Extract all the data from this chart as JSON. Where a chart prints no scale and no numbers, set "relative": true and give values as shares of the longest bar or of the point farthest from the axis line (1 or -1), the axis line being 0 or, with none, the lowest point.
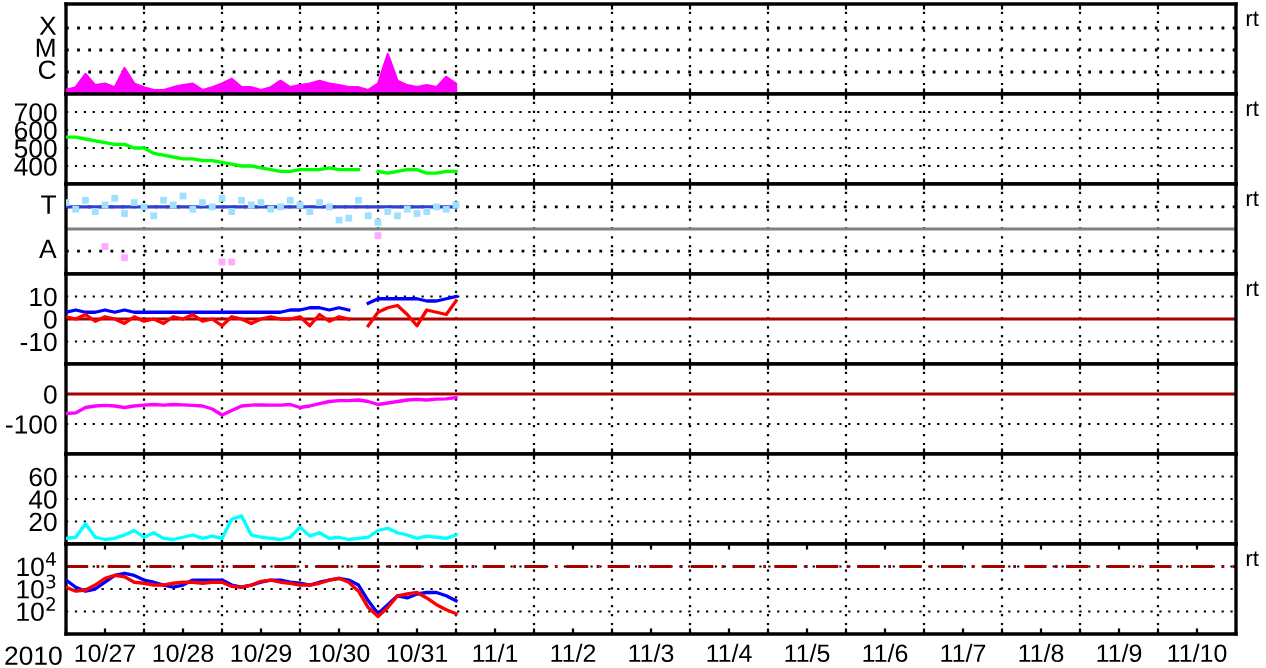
{
  "chart_data": [
    {
      "type": "area",
      "tick_labels": false,
      "relative": true,
      "grid": "x",
      "xlim": [
        "2010-10-27T00:00",
        "2010-11-11T00:00"
      ],
      "xticks": [
        {
          "value": "2010-10-27T00:00",
          "label": null
        },
        {
          "value": "2010-10-28T00:00",
          "label": null
        },
        {
          "value": "2010-10-29T00:00",
          "label": null
        },
        {
          "value": "2010-10-30T00:00",
          "label": null
        },
        {
          "value": "2010-10-31T00:00",
          "label": null
        },
        {
          "value": "2010-11-01T00:00",
          "label": null
        },
        {
          "value": "2010-11-02T00:00",
          "label": null
        },
        {
          "value": "2010-11-03T00:00",
          "label": null
        },
        {
          "value": "2010-11-04T00:00",
          "label": null
        },
        {
          "value": "2010-11-05T00:00",
          "label": null
        },
        {
          "value": "2010-11-06T00:00",
          "label": null
        },
        {
          "value": "2010-11-07T00:00",
          "label": null
        },
        {
          "value": "2010-11-08T00:00",
          "label": null
        },
        {
          "value": "2010-11-09T00:00",
          "label": null
        },
        {
          "value": "2010-11-10T00:00",
          "label": null
        },
        {
          "value": "2010-11-11T00:00",
          "label": null
        }
      ],
      "ref_lines": [
        {
          "axis": "y",
          "value": 0.55,
          "label": "C",
          "color": "#000000",
          "line_style": "dotted"
        },
        {
          "axis": "y",
          "value": 1.1,
          "label": "M",
          "color": "#000000",
          "line_style": "dotted"
        },
        {
          "axis": "y",
          "value": 1.65,
          "label": "X",
          "color": "#000000",
          "line_style": "dotted"
        }
      ],
      "annotations": [
        "rt"
      ],
      "x": [
        "2010-10-27T00:00",
        "2010-10-27T03:00",
        "2010-10-27T06:00",
        "2010-10-27T09:00",
        "2010-10-27T12:00",
        "2010-10-27T15:00",
        "2010-10-27T18:00",
        "2010-10-27T21:00",
        "2010-10-28T00:00",
        "2010-10-28T03:00",
        "2010-10-28T06:00",
        "2010-10-28T09:00",
        "2010-10-28T12:00",
        "2010-10-28T15:00",
        "2010-10-28T18:00",
        "2010-10-28T21:00",
        "2010-10-29T00:00",
        "2010-10-29T03:00",
        "2010-10-29T06:00",
        "2010-10-29T09:00",
        "2010-10-29T12:00",
        "2010-10-29T15:00",
        "2010-10-29T18:00",
        "2010-10-29T21:00",
        "2010-10-30T00:00",
        "2010-10-30T03:00",
        "2010-10-30T06:00",
        "2010-10-30T09:00",
        "2010-10-30T12:00",
        "2010-10-30T15:00",
        "2010-10-30T18:00",
        "2010-10-30T21:00",
        "2010-10-31T00:00",
        "2010-10-31T03:00",
        "2010-10-31T06:00",
        "2010-10-31T09:00",
        "2010-10-31T12:00",
        "2010-10-31T15:00",
        "2010-10-31T18:00",
        "2010-10-31T21:00",
        "2010-11-01T00:00"
      ],
      "series": [
        {
          "color": "#ff00ff",
          "values": [
            0.1,
            0.17,
            0.5,
            0.22,
            0.26,
            0.17,
            0.65,
            0.26,
            0.17,
            0.1,
            0.1,
            0.17,
            0.22,
            0.26,
            0.1,
            0.17,
            0.26,
            0.38,
            0.17,
            0.17,
            0.1,
            0.17,
            0.33,
            0.17,
            0.22,
            0.26,
            0.33,
            0.26,
            0.22,
            0.17,
            0.17,
            0.1,
            0.26,
            1,
            0.33,
            0.22,
            0.17,
            0.22,
            0.17,
            0.43,
            0.26
          ]
        }
      ]
    },
    {
      "type": "line",
      "tick_labels": "y",
      "grid": true,
      "xlim": [
        "2010-10-27T00:00",
        "2010-11-11T00:00"
      ],
      "ylim": [
        300,
        800
      ],
      "xticks": [
        {
          "value": "2010-10-27T00:00",
          "label": null
        },
        {
          "value": "2010-10-28T00:00",
          "label": null
        },
        {
          "value": "2010-10-29T00:00",
          "label": null
        },
        {
          "value": "2010-10-30T00:00",
          "label": null
        },
        {
          "value": "2010-10-31T00:00",
          "label": null
        },
        {
          "value": "2010-11-01T00:00",
          "label": null
        },
        {
          "value": "2010-11-02T00:00",
          "label": null
        },
        {
          "value": "2010-11-03T00:00",
          "label": null
        },
        {
          "value": "2010-11-04T00:00",
          "label": null
        },
        {
          "value": "2010-11-05T00:00",
          "label": null
        },
        {
          "value": "2010-11-06T00:00",
          "label": null
        },
        {
          "value": "2010-11-07T00:00",
          "label": null
        },
        {
          "value": "2010-11-08T00:00",
          "label": null
        },
        {
          "value": "2010-11-09T00:00",
          "label": null
        },
        {
          "value": "2010-11-10T00:00",
          "label": null
        },
        {
          "value": "2010-11-11T00:00",
          "label": null
        }
      ],
      "yticks": [
        400,
        500,
        600,
        700
      ],
      "annotations": [
        "rt"
      ],
      "x": [
        "2010-10-27T00:00",
        "2010-10-27T03:00",
        "2010-10-27T06:00",
        "2010-10-27T09:00",
        "2010-10-27T12:00",
        "2010-10-27T15:00",
        "2010-10-27T18:00",
        "2010-10-27T21:00",
        "2010-10-28T00:00",
        "2010-10-28T03:00",
        "2010-10-28T06:00",
        "2010-10-28T09:00",
        "2010-10-28T12:00",
        "2010-10-28T15:00",
        "2010-10-28T18:00",
        "2010-10-28T21:00",
        "2010-10-29T00:00",
        "2010-10-29T03:00",
        "2010-10-29T06:00",
        "2010-10-29T09:00",
        "2010-10-29T12:00",
        "2010-10-29T15:00",
        "2010-10-29T18:00",
        "2010-10-29T21:00",
        "2010-10-30T00:00",
        "2010-10-30T03:00",
        "2010-10-30T06:00",
        "2010-10-30T09:00",
        "2010-10-30T12:00",
        "2010-10-30T15:00",
        "2010-10-30T18:00",
        "2010-10-30T21:00",
        "2010-10-31T00:00",
        "2010-10-31T03:00",
        "2010-10-31T06:00",
        "2010-10-31T09:00",
        "2010-10-31T12:00",
        "2010-10-31T15:00",
        "2010-10-31T18:00",
        "2010-10-31T21:00",
        "2010-11-01T00:00"
      ],
      "series": [
        {
          "color": "#00ff00",
          "values": [
            560,
            560,
            550,
            540,
            530,
            520,
            520,
            500,
            500,
            470,
            460,
            450,
            440,
            440,
            430,
            430,
            420,
            410,
            400,
            400,
            390,
            380,
            370,
            370,
            380,
            380,
            380,
            390,
            380,
            380,
            380,
            null,
            370,
            360,
            370,
            380,
            380,
            360,
            360,
            370,
            370
          ]
        }
      ]
    },
    {
      "type": "line",
      "tick_labels": false,
      "relative": true,
      "grid": "x",
      "xlim": [
        "2010-10-27T00:00",
        "2010-11-11T00:00"
      ],
      "xticks": [
        {
          "value": "2010-10-27T00:00",
          "label": null
        },
        {
          "value": "2010-10-28T00:00",
          "label": null
        },
        {
          "value": "2010-10-29T00:00",
          "label": null
        },
        {
          "value": "2010-10-30T00:00",
          "label": null
        },
        {
          "value": "2010-10-31T00:00",
          "label": null
        },
        {
          "value": "2010-11-01T00:00",
          "label": null
        },
        {
          "value": "2010-11-02T00:00",
          "label": null
        },
        {
          "value": "2010-11-03T00:00",
          "label": null
        },
        {
          "value": "2010-11-04T00:00",
          "label": null
        },
        {
          "value": "2010-11-05T00:00",
          "label": null
        },
        {
          "value": "2010-11-06T00:00",
          "label": null
        },
        {
          "value": "2010-11-07T00:00",
          "label": null
        },
        {
          "value": "2010-11-08T00:00",
          "label": null
        },
        {
          "value": "2010-11-09T00:00",
          "label": null
        },
        {
          "value": "2010-11-10T00:00",
          "label": null
        },
        {
          "value": "2010-11-11T00:00",
          "label": null
        }
      ],
      "ref_lines": [
        {
          "axis": "y",
          "value": 0.67,
          "label": "T",
          "color": "#000000",
          "line_style": "dotted"
        },
        {
          "axis": "y",
          "value": -0.67,
          "label": "A",
          "color": "#000000",
          "line_style": "dotted"
        },
        {
          "axis": "y",
          "value": 0,
          "color": "#808080",
          "line_style": "solid"
        }
      ],
      "annotations": [
        "rt"
      ],
      "x": [
        "2010-10-27T00:00",
        "2010-10-27T03:00",
        "2010-10-27T06:00",
        "2010-10-27T09:00",
        "2010-10-27T12:00",
        "2010-10-27T15:00",
        "2010-10-27T18:00",
        "2010-10-27T21:00",
        "2010-10-28T00:00",
        "2010-10-28T03:00",
        "2010-10-28T06:00",
        "2010-10-28T09:00",
        "2010-10-28T12:00",
        "2010-10-28T15:00",
        "2010-10-28T18:00",
        "2010-10-28T21:00",
        "2010-10-29T00:00",
        "2010-10-29T03:00",
        "2010-10-29T06:00",
        "2010-10-29T09:00",
        "2010-10-29T12:00",
        "2010-10-29T15:00",
        "2010-10-29T18:00",
        "2010-10-29T21:00",
        "2010-10-30T00:00",
        "2010-10-30T03:00",
        "2010-10-30T06:00",
        "2010-10-30T09:00",
        "2010-10-30T12:00",
        "2010-10-30T15:00",
        "2010-10-30T18:00",
        "2010-10-30T21:00",
        "2010-10-31T00:00",
        "2010-10-31T03:00",
        "2010-10-31T06:00",
        "2010-10-31T09:00",
        "2010-10-31T12:00",
        "2010-10-31T15:00",
        "2010-10-31T18:00",
        "2010-10-31T21:00",
        "2010-11-01T00:00"
      ],
      "series": [
        {
          "type": "scatter",
          "marker": "square",
          "color": "#a0e0ff",
          "values": [
            0.8,
            0.6,
            0.87,
            0.53,
            0.73,
            0.93,
            0.47,
            0.8,
            0.67,
            0.4,
            0.87,
            0.73,
            1,
            0.6,
            0.8,
            0.67,
            0.93,
            0.53,
            0.87,
            0.73,
            0.8,
            0.6,
            0.67,
            0.87,
            0.73,
            0.53,
            0.8,
            0.67,
            0.27,
            0.33,
            0.87,
            0.4,
            0.2,
            0.53,
            0.4,
            0.6,
            0.47,
            0.53,
            0.67,
            0.6,
            0.73
          ]
        },
        {
          "type": "line",
          "color": "#3040d0",
          "values": [
            0.67,
            0.67,
            0.67,
            0.67,
            0.67,
            0.67,
            0.67,
            0.67,
            0.67,
            0.67,
            0.67,
            0.67,
            0.67,
            0.67,
            0.67,
            0.67,
            0.67,
            0.67,
            0.67,
            0.67,
            0.67,
            0.67,
            0.67,
            0.67,
            0.67,
            0.67,
            0.67,
            0.67,
            0.67,
            0.67,
            0.67,
            0.67,
            0.67,
            0.67,
            0.67,
            0.67,
            0.67,
            0.67,
            0.67,
            0.67,
            0.67
          ]
        },
        {
          "type": "scatter",
          "marker": "square",
          "color": "#ffaaff",
          "values": [
            null,
            null,
            null,
            null,
            -0.53,
            null,
            -0.87,
            null,
            null,
            null,
            null,
            null,
            null,
            null,
            null,
            null,
            -1,
            -1,
            null,
            null,
            null,
            null,
            null,
            null,
            null,
            null,
            null,
            null,
            null,
            null,
            null,
            null,
            -0.2,
            null,
            null,
            null,
            null,
            null,
            null,
            null,
            null
          ]
        }
      ]
    },
    {
      "type": "line",
      "tick_labels": "y",
      "grid": true,
      "xlim": [
        "2010-10-27T00:00",
        "2010-11-11T00:00"
      ],
      "ylim": [
        -20,
        20
      ],
      "xticks": [
        {
          "value": "2010-10-27T00:00",
          "label": null
        },
        {
          "value": "2010-10-28T00:00",
          "label": null
        },
        {
          "value": "2010-10-29T00:00",
          "label": null
        },
        {
          "value": "2010-10-30T00:00",
          "label": null
        },
        {
          "value": "2010-10-31T00:00",
          "label": null
        },
        {
          "value": "2010-11-01T00:00",
          "label": null
        },
        {
          "value": "2010-11-02T00:00",
          "label": null
        },
        {
          "value": "2010-11-03T00:00",
          "label": null
        },
        {
          "value": "2010-11-04T00:00",
          "label": null
        },
        {
          "value": "2010-11-05T00:00",
          "label": null
        },
        {
          "value": "2010-11-06T00:00",
          "label": null
        },
        {
          "value": "2010-11-07T00:00",
          "label": null
        },
        {
          "value": "2010-11-08T00:00",
          "label": null
        },
        {
          "value": "2010-11-09T00:00",
          "label": null
        },
        {
          "value": "2010-11-10T00:00",
          "label": null
        },
        {
          "value": "2010-11-11T00:00",
          "label": null
        }
      ],
      "yticks": [
        {
          "value": -10,
          "label": "-10"
        },
        0,
        10
      ],
      "ref_lines": [
        {
          "axis": "y",
          "value": 0,
          "color": "#aa0000",
          "line_style": "solid"
        }
      ],
      "annotations": [
        "rt"
      ],
      "x": [
        "2010-10-27T00:00",
        "2010-10-27T03:00",
        "2010-10-27T06:00",
        "2010-10-27T09:00",
        "2010-10-27T12:00",
        "2010-10-27T15:00",
        "2010-10-27T18:00",
        "2010-10-27T21:00",
        "2010-10-28T00:00",
        "2010-10-28T03:00",
        "2010-10-28T06:00",
        "2010-10-28T09:00",
        "2010-10-28T12:00",
        "2010-10-28T15:00",
        "2010-10-28T18:00",
        "2010-10-28T21:00",
        "2010-10-29T00:00",
        "2010-10-29T03:00",
        "2010-10-29T06:00",
        "2010-10-29T09:00",
        "2010-10-29T12:00",
        "2010-10-29T15:00",
        "2010-10-29T18:00",
        "2010-10-29T21:00",
        "2010-10-30T00:00",
        "2010-10-30T03:00",
        "2010-10-30T06:00",
        "2010-10-30T09:00",
        "2010-10-30T12:00",
        "2010-10-30T15:00",
        "2010-10-30T18:00",
        "2010-10-30T21:00",
        "2010-10-31T00:00",
        "2010-10-31T03:00",
        "2010-10-31T06:00",
        "2010-10-31T09:00",
        "2010-10-31T12:00",
        "2010-10-31T15:00",
        "2010-10-31T18:00",
        "2010-10-31T21:00",
        "2010-11-01T00:00"
      ],
      "series": [
        {
          "color": "#0000ff",
          "values": [
            3,
            4,
            3,
            3,
            4,
            3,
            4,
            3,
            3,
            3,
            3,
            3,
            3,
            3,
            3,
            3,
            3,
            3,
            3,
            3,
            3,
            3,
            3,
            4,
            4,
            5,
            5,
            4,
            5,
            4,
            null,
            7,
            9,
            9,
            9,
            9,
            9,
            8,
            8,
            9,
            10
          ]
        },
        {
          "color": "#ff0000",
          "values": [
            1,
            0,
            2,
            -1,
            1,
            0,
            -2,
            1,
            -1,
            0,
            -2,
            1,
            0,
            2,
            -1,
            0,
            -3,
            1,
            0,
            -2,
            0,
            1,
            0,
            0,
            1,
            -3,
            2,
            -1,
            1,
            0,
            null,
            -3,
            3,
            5,
            6,
            2,
            -3,
            4,
            3,
            2,
            8
          ]
        }
      ]
    },
    {
      "type": "line",
      "tick_labels": "y",
      "grid": true,
      "xlim": [
        "2010-10-27T00:00",
        "2010-11-11T00:00"
      ],
      "ylim": [
        -200,
        100
      ],
      "xticks": [
        {
          "value": "2010-10-27T00:00",
          "label": null
        },
        {
          "value": "2010-10-28T00:00",
          "label": null
        },
        {
          "value": "2010-10-29T00:00",
          "label": null
        },
        {
          "value": "2010-10-30T00:00",
          "label": null
        },
        {
          "value": "2010-10-31T00:00",
          "label": null
        },
        {
          "value": "2010-11-01T00:00",
          "label": null
        },
        {
          "value": "2010-11-02T00:00",
          "label": null
        },
        {
          "value": "2010-11-03T00:00",
          "label": null
        },
        {
          "value": "2010-11-04T00:00",
          "label": null
        },
        {
          "value": "2010-11-05T00:00",
          "label": null
        },
        {
          "value": "2010-11-06T00:00",
          "label": null
        },
        {
          "value": "2010-11-07T00:00",
          "label": null
        },
        {
          "value": "2010-11-08T00:00",
          "label": null
        },
        {
          "value": "2010-11-09T00:00",
          "label": null
        },
        {
          "value": "2010-11-10T00:00",
          "label": null
        },
        {
          "value": "2010-11-11T00:00",
          "label": null
        }
      ],
      "yticks": [
        {
          "value": -100,
          "label": "-100"
        },
        0
      ],
      "ref_lines": [
        {
          "axis": "y",
          "value": 0,
          "color": "#aa0000",
          "line_style": "solid"
        }
      ],
      "x": [
        "2010-10-27T00:00",
        "2010-10-27T03:00",
        "2010-10-27T06:00",
        "2010-10-27T09:00",
        "2010-10-27T12:00",
        "2010-10-27T15:00",
        "2010-10-27T18:00",
        "2010-10-27T21:00",
        "2010-10-28T00:00",
        "2010-10-28T03:00",
        "2010-10-28T06:00",
        "2010-10-28T09:00",
        "2010-10-28T12:00",
        "2010-10-28T15:00",
        "2010-10-28T18:00",
        "2010-10-28T21:00",
        "2010-10-29T00:00",
        "2010-10-29T03:00",
        "2010-10-29T06:00",
        "2010-10-29T09:00",
        "2010-10-29T12:00",
        "2010-10-29T15:00",
        "2010-10-29T18:00",
        "2010-10-29T21:00",
        "2010-10-30T00:00",
        "2010-10-30T03:00",
        "2010-10-30T06:00",
        "2010-10-30T09:00",
        "2010-10-30T12:00",
        "2010-10-30T15:00",
        "2010-10-30T18:00",
        "2010-10-30T21:00",
        "2010-10-31T00:00",
        "2010-10-31T03:00",
        "2010-10-31T06:00",
        "2010-10-31T09:00",
        "2010-10-31T12:00",
        "2010-10-31T15:00",
        "2010-10-31T18:00",
        "2010-10-31T21:00",
        "2010-11-01T00:00"
      ],
      "series": [
        {
          "color": "#ff00ff",
          "values": [
            -65,
            -63,
            -45,
            -40,
            -38,
            -40,
            -45,
            -40,
            -37,
            -35,
            -37,
            -35,
            -36,
            -38,
            -40,
            -50,
            -70,
            -55,
            -40,
            -37,
            -36,
            -37,
            -37,
            -35,
            -45,
            -40,
            -32,
            -25,
            -22,
            -22,
            -20,
            -25,
            -35,
            -30,
            -25,
            -20,
            -18,
            -20,
            -17,
            -16,
            -12
          ]
        }
      ]
    },
    {
      "type": "line",
      "tick_labels": "y",
      "grid": true,
      "xlim": [
        "2010-10-27T00:00",
        "2010-11-11T00:00"
      ],
      "ylim": [
        0,
        80
      ],
      "xticks": [
        {
          "value": "2010-10-27T00:00",
          "label": null
        },
        {
          "value": "2010-10-28T00:00",
          "label": null
        },
        {
          "value": "2010-10-29T00:00",
          "label": null
        },
        {
          "value": "2010-10-30T00:00",
          "label": null
        },
        {
          "value": "2010-10-31T00:00",
          "label": null
        },
        {
          "value": "2010-11-01T00:00",
          "label": null
        },
        {
          "value": "2010-11-02T00:00",
          "label": null
        },
        {
          "value": "2010-11-03T00:00",
          "label": null
        },
        {
          "value": "2010-11-04T00:00",
          "label": null
        },
        {
          "value": "2010-11-05T00:00",
          "label": null
        },
        {
          "value": "2010-11-06T00:00",
          "label": null
        },
        {
          "value": "2010-11-07T00:00",
          "label": null
        },
        {
          "value": "2010-11-08T00:00",
          "label": null
        },
        {
          "value": "2010-11-09T00:00",
          "label": null
        },
        {
          "value": "2010-11-10T00:00",
          "label": null
        },
        {
          "value": "2010-11-11T00:00",
          "label": null
        }
      ],
      "yticks": [
        20,
        40,
        60
      ],
      "x": [
        "2010-10-27T00:00",
        "2010-10-27T03:00",
        "2010-10-27T06:00",
        "2010-10-27T09:00",
        "2010-10-27T12:00",
        "2010-10-27T15:00",
        "2010-10-27T18:00",
        "2010-10-27T21:00",
        "2010-10-28T00:00",
        "2010-10-28T03:00",
        "2010-10-28T06:00",
        "2010-10-28T09:00",
        "2010-10-28T12:00",
        "2010-10-28T15:00",
        "2010-10-28T18:00",
        "2010-10-28T21:00",
        "2010-10-29T00:00",
        "2010-10-29T03:00",
        "2010-10-29T06:00",
        "2010-10-29T09:00",
        "2010-10-29T12:00",
        "2010-10-29T15:00",
        "2010-10-29T18:00",
        "2010-10-29T21:00",
        "2010-10-30T00:00",
        "2010-10-30T03:00",
        "2010-10-30T06:00",
        "2010-10-30T09:00",
        "2010-10-30T12:00",
        "2010-10-30T15:00",
        "2010-10-30T18:00",
        "2010-10-30T21:00",
        "2010-10-31T00:00",
        "2010-10-31T03:00",
        "2010-10-31T06:00",
        "2010-10-31T09:00",
        "2010-10-31T12:00",
        "2010-10-31T15:00",
        "2010-10-31T18:00",
        "2010-10-31T21:00",
        "2010-11-01T00:00"
      ],
      "series": [
        {
          "color": "#00ffff",
          "values": [
            5,
            6,
            18,
            6,
            4,
            5,
            8,
            12,
            6,
            10,
            5,
            4,
            6,
            8,
            5,
            7,
            5,
            22,
            25,
            8,
            6,
            5,
            4,
            6,
            15,
            7,
            10,
            5,
            6,
            4,
            5,
            6,
            12,
            14,
            10,
            8,
            5,
            7,
            6,
            5,
            8
          ]
        }
      ]
    },
    {
      "type": "line",
      "log": true,
      "grid": true,
      "xlim": [
        "2010-10-27T00:00",
        "2010-11-11T00:00"
      ],
      "ylim": [
        10,
        100000
      ],
      "xticks": [
        {
          "value": "2010-10-27T00:00",
          "label": null
        },
        {
          "value": "2010-10-27T12:00",
          "label": "10/27"
        },
        {
          "value": "2010-10-28T00:00",
          "label": null
        },
        {
          "value": "2010-10-28T12:00",
          "label": "10/28"
        },
        {
          "value": "2010-10-29T00:00",
          "label": null
        },
        {
          "value": "2010-10-29T12:00",
          "label": "10/29"
        },
        {
          "value": "2010-10-30T00:00",
          "label": null
        },
        {
          "value": "2010-10-30T12:00",
          "label": "10/30"
        },
        {
          "value": "2010-10-31T00:00",
          "label": null
        },
        {
          "value": "2010-10-31T12:00",
          "label": "10/31"
        },
        {
          "value": "2010-11-01T00:00",
          "label": null
        },
        {
          "value": "2010-11-01T12:00",
          "label": "11/1"
        },
        {
          "value": "2010-11-02T00:00",
          "label": null
        },
        {
          "value": "2010-11-02T12:00",
          "label": "11/2"
        },
        {
          "value": "2010-11-03T00:00",
          "label": null
        },
        {
          "value": "2010-11-03T12:00",
          "label": "11/3"
        },
        {
          "value": "2010-11-04T00:00",
          "label": null
        },
        {
          "value": "2010-11-04T12:00",
          "label": "11/4"
        },
        {
          "value": "2010-11-05T00:00",
          "label": null
        },
        {
          "value": "2010-11-05T12:00",
          "label": "11/5"
        },
        {
          "value": "2010-11-06T00:00",
          "label": null
        },
        {
          "value": "2010-11-06T12:00",
          "label": "11/6"
        },
        {
          "value": "2010-11-07T00:00",
          "label": null
        },
        {
          "value": "2010-11-07T12:00",
          "label": "11/7"
        },
        {
          "value": "2010-11-08T00:00",
          "label": null
        },
        {
          "value": "2010-11-08T12:00",
          "label": "11/8"
        },
        {
          "value": "2010-11-09T00:00",
          "label": null
        },
        {
          "value": "2010-11-09T12:00",
          "label": "11/9"
        },
        {
          "value": "2010-11-10T00:00",
          "label": null
        },
        {
          "value": "2010-11-10T12:00",
          "label": "11/10"
        },
        {
          "value": "2010-11-11T00:00",
          "label": null
        }
      ],
      "yticks": [
        {
          "value": 100,
          "label": "10$^{2}$"
        },
        {
          "value": 1000,
          "label": "10$^{3}$"
        },
        {
          "value": 10000,
          "label": "10$^{4}$"
        }
      ],
      "ref_lines": [
        {
          "axis": "y",
          "value": 10000,
          "color": "#aa0000",
          "line_style": "dashed"
        }
      ],
      "xlabel": "2010",
      "annotations": [
        "rt"
      ],
      "x": [
        "2010-10-27T00:00",
        "2010-10-27T03:00",
        "2010-10-27T06:00",
        "2010-10-27T09:00",
        "2010-10-27T12:00",
        "2010-10-27T15:00",
        "2010-10-27T18:00",
        "2010-10-27T21:00",
        "2010-10-28T00:00",
        "2010-10-28T03:00",
        "2010-10-28T06:00",
        "2010-10-28T09:00",
        "2010-10-28T12:00",
        "2010-10-28T15:00",
        "2010-10-28T18:00",
        "2010-10-28T21:00",
        "2010-10-29T00:00",
        "2010-10-29T03:00",
        "2010-10-29T06:00",
        "2010-10-29T09:00",
        "2010-10-29T12:00",
        "2010-10-29T15:00",
        "2010-10-29T18:00",
        "2010-10-29T21:00",
        "2010-10-30T00:00",
        "2010-10-30T03:00",
        "2010-10-30T06:00",
        "2010-10-30T09:00",
        "2010-10-30T12:00",
        "2010-10-30T15:00",
        "2010-10-30T18:00",
        "2010-10-30T21:00",
        "2010-10-31T00:00",
        "2010-10-31T03:00",
        "2010-10-31T06:00",
        "2010-10-31T09:00",
        "2010-10-31T12:00",
        "2010-10-31T15:00",
        "2010-10-31T18:00",
        "2010-10-31T21:00",
        "2010-11-01T00:00"
      ],
      "series": [
        {
          "color": "#0000ff",
          "values": [
            2500,
            1200,
            800,
            1000,
            2000,
            4000,
            5000,
            4000,
            2500,
            2000,
            1500,
            1200,
            1500,
            2500,
            2500,
            2500,
            2500,
            1500,
            1200,
            1500,
            2000,
            2500,
            2500,
            2000,
            1800,
            1500,
            2000,
            2500,
            3000,
            2500,
            1500,
            300,
            80,
            200,
            500,
            400,
            600,
            700,
            700,
            500,
            300
          ]
        },
        {
          "color": "#ff0000",
          "values": [
            1200,
            800,
            900,
            1500,
            3000,
            4000,
            3500,
            2000,
            1800,
            1500,
            1500,
            1800,
            2000,
            2000,
            1800,
            2000,
            2000,
            1300,
            1200,
            1500,
            2200,
            2500,
            2000,
            1800,
            1500,
            1500,
            1800,
            2500,
            3000,
            2000,
            800,
            150,
            60,
            150,
            500,
            600,
            700,
            400,
            200,
            120,
            80
          ]
        }
      ]
    }
  ]
}
